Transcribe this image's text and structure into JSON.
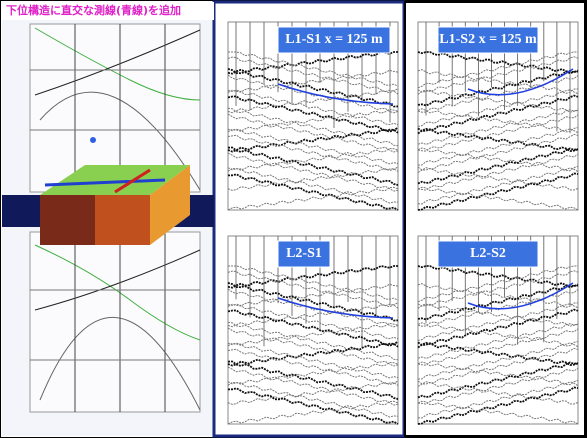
{
  "header": {
    "title": "下位構造に直交な測線(青線)を追加"
  },
  "panels": [
    {
      "label": "L1-S1 x = 125 m"
    },
    {
      "label": "L1-S2 x = 125 m"
    },
    {
      "label": "L2-S1"
    },
    {
      "label": "L2-S2"
    }
  ]
}
